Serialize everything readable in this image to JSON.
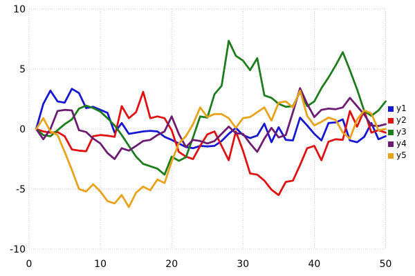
{
  "chart_data": {
    "type": "line",
    "title": "",
    "xlabel": "",
    "ylabel": "",
    "xlim": [
      0,
      50
    ],
    "ylim": [
      -10,
      10
    ],
    "x_ticks": [
      "0",
      "10",
      "20",
      "30",
      "40",
      "50"
    ],
    "x_tick_values": [
      0,
      10,
      20,
      30,
      40,
      50
    ],
    "y_ticks": [
      "10",
      "5",
      "0",
      "-5",
      "-10"
    ],
    "y_tick_values": [
      10,
      5,
      0,
      -5,
      -10
    ],
    "grid": "dotted",
    "grid_color": "#c9c9dc",
    "background": "#ffffff",
    "legend_position": "right-outside",
    "x": [
      1,
      2,
      3,
      4,
      5,
      6,
      7,
      8,
      9,
      10,
      11,
      12,
      13,
      14,
      15,
      16,
      17,
      18,
      19,
      20,
      21,
      22,
      23,
      24,
      25,
      26,
      27,
      28,
      29,
      30,
      31,
      32,
      33,
      34,
      35,
      36,
      37,
      38,
      39,
      40,
      41,
      42,
      43,
      44,
      45,
      46,
      47,
      48,
      49,
      50
    ],
    "series": [
      {
        "name": "y1",
        "color": "#1717d1",
        "values": [
          0,
          2.1,
          3.2,
          2.3,
          2.2,
          3.35,
          3.0,
          1.75,
          1.85,
          1.6,
          1.35,
          -0.3,
          0.5,
          -0.4,
          -0.3,
          -0.2,
          -0.15,
          -0.2,
          -0.65,
          -0.9,
          -1.2,
          -1.5,
          -1.6,
          -1.4,
          -1.45,
          -1.4,
          -1.0,
          -0.4,
          0.1,
          -0.5,
          -0.75,
          -0.55,
          0.45,
          -1.1,
          0.15,
          -0.9,
          -0.95,
          0.95,
          0.3,
          -0.4,
          -0.95,
          0.5,
          0.55,
          0.8,
          -0.95,
          -1.1,
          -0.65,
          0.5,
          -0.85,
          -0.6
        ]
      },
      {
        "name": "y2",
        "color": "#e01111",
        "values": [
          0,
          -0.2,
          -0.3,
          -0.25,
          -0.6,
          -1.7,
          -1.8,
          -1.85,
          -0.6,
          -0.5,
          -0.55,
          -0.65,
          1.9,
          0.9,
          1.4,
          3.1,
          0.9,
          1.05,
          0.9,
          -0.1,
          -1.9,
          -2.3,
          -2.5,
          -1.4,
          -0.45,
          -0.2,
          -1.4,
          -2.6,
          -0.2,
          -1.8,
          -3.7,
          -3.8,
          -4.3,
          -5.05,
          -5.5,
          -4.4,
          -4.3,
          -3.0,
          -1.6,
          -1.4,
          -2.6,
          -1.05,
          -0.85,
          -0.9,
          1.5,
          0.2,
          1.55,
          -0.3,
          -0.1,
          -0.3
        ]
      },
      {
        "name": "y3",
        "color": "#1d7d1d",
        "values": [
          0,
          -0.5,
          -0.6,
          -0.1,
          0.4,
          0.8,
          1.7,
          1.95,
          1.75,
          1.45,
          0.9,
          0.3,
          -0.5,
          -1.4,
          -2.3,
          -2.9,
          -3.1,
          -3.3,
          -3.8,
          -2.3,
          -2.65,
          -2.35,
          -0.7,
          1.05,
          0.95,
          2.9,
          3.6,
          7.35,
          6.1,
          5.7,
          4.9,
          5.9,
          2.8,
          2.6,
          2.1,
          1.85,
          1.9,
          3.1,
          1.9,
          2.3,
          3.4,
          4.3,
          5.3,
          6.4,
          4.9,
          3.3,
          1.5,
          1.1,
          1.55,
          2.3
        ]
      },
      {
        "name": "y4",
        "color": "#6b1c70",
        "values": [
          0,
          -0.85,
          0.0,
          1.5,
          1.6,
          1.55,
          -0.1,
          -0.25,
          -0.8,
          -1.2,
          -2.0,
          -2.5,
          -1.6,
          -1.8,
          -1.4,
          -1.0,
          -0.9,
          -0.5,
          -0.2,
          1.05,
          -0.4,
          -1.5,
          -0.9,
          -1.0,
          -1.2,
          -1.0,
          -0.4,
          0.2,
          -0.35,
          -0.4,
          -1.2,
          -1.9,
          -0.8,
          0.1,
          -0.7,
          -0.5,
          1.4,
          3.4,
          2.1,
          1.0,
          1.6,
          1.7,
          1.65,
          1.8,
          2.6,
          1.9,
          1.2,
          0.3,
          0.25,
          0.4
        ]
      },
      {
        "name": "y5",
        "color": "#e8a21b",
        "values": [
          0,
          0.9,
          -0.2,
          -0.5,
          -1.9,
          -3.4,
          -5.0,
          -5.2,
          -4.6,
          -5.2,
          -6.0,
          -6.2,
          -5.5,
          -6.5,
          -5.3,
          -4.8,
          -5.1,
          -4.2,
          -4.5,
          -2.7,
          -1.2,
          -0.6,
          0.4,
          1.8,
          1.0,
          1.25,
          1.25,
          0.9,
          0.1,
          0.9,
          1.0,
          1.4,
          1.8,
          0.7,
          2.2,
          2.3,
          1.8,
          3.2,
          1.1,
          0.3,
          0.6,
          0.95,
          0.75,
          -0.3,
          -0.8,
          0.8,
          1.55,
          1.3,
          -0.1,
          0.0
        ]
      }
    ],
    "legend": [
      "y1",
      "y2",
      "y3",
      "y4",
      "y5"
    ]
  }
}
